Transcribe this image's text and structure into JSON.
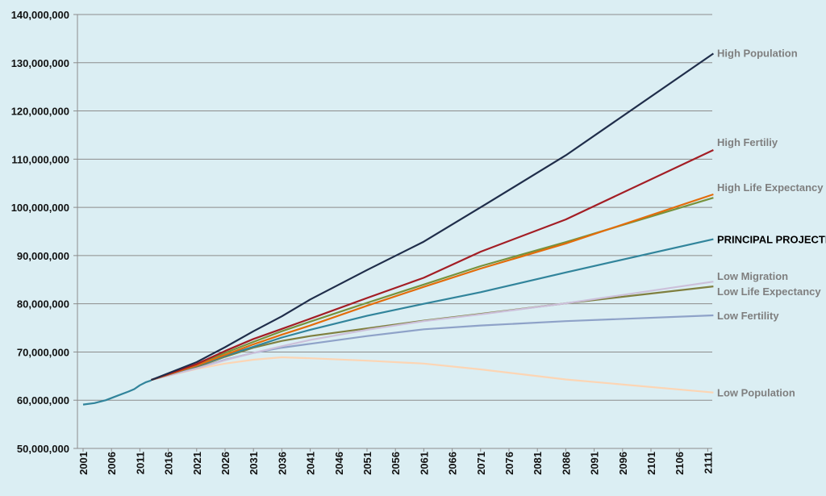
{
  "chart_data": {
    "type": "line",
    "title": "",
    "xlabel": "",
    "ylabel": "",
    "ylim": [
      50000000,
      140000000
    ],
    "xlim": [
      2001,
      2112
    ],
    "y_ticks": [
      50000000,
      60000000,
      70000000,
      80000000,
      90000000,
      100000000,
      110000000,
      120000000,
      130000000,
      140000000
    ],
    "y_tick_labels": [
      "50,000,000",
      "60,000,000",
      "70,000,000",
      "80,000,000",
      "90,000,000",
      "100,000,000",
      "110,000,000",
      "120,000,000",
      "130,000,000",
      "140,000,000"
    ],
    "x_tick_labels": [
      "2001",
      "2006",
      "2011",
      "2016",
      "2021",
      "2026",
      "2031",
      "2036",
      "2041",
      "2046",
      "2051",
      "2056",
      "2061",
      "2066",
      "2071",
      "2076",
      "2081",
      "2086",
      "2091",
      "2096",
      "2101",
      "2106",
      "2111"
    ],
    "grid": "horizontal",
    "legend": "labels at right end of each line",
    "historical": {
      "color": "#31849b",
      "points": [
        [
          2001,
          59100000
        ],
        [
          2003,
          59400000
        ],
        [
          2005,
          60000000
        ],
        [
          2007,
          60900000
        ],
        [
          2009,
          61800000
        ],
        [
          2010,
          62300000
        ],
        [
          2011,
          63100000
        ],
        [
          2012,
          63700000
        ],
        [
          2013,
          64100000
        ]
      ]
    },
    "series": [
      {
        "name": "High Population",
        "color": "#1f2d4a",
        "emph": false,
        "points": [
          [
            2013,
            64200000
          ],
          [
            2021,
            67900000
          ],
          [
            2026,
            71000000
          ],
          [
            2031,
            74300000
          ],
          [
            2036,
            77400000
          ],
          [
            2041,
            80900000
          ],
          [
            2051,
            87000000
          ],
          [
            2061,
            92900000
          ],
          [
            2071,
            100000000
          ],
          [
            2086,
            110800000
          ],
          [
            2112,
            131900000
          ]
        ]
      },
      {
        "name": "High Fertiliy",
        "color": "#a31d24",
        "emph": false,
        "points": [
          [
            2013,
            64200000
          ],
          [
            2021,
            67500000
          ],
          [
            2026,
            70200000
          ],
          [
            2031,
            72700000
          ],
          [
            2036,
            74800000
          ],
          [
            2041,
            76900000
          ],
          [
            2051,
            81200000
          ],
          [
            2061,
            85400000
          ],
          [
            2071,
            90800000
          ],
          [
            2086,
            97500000
          ],
          [
            2112,
            111900000
          ]
        ]
      },
      {
        "name": "High Life Expectancy",
        "color": "#e36c0a",
        "emph": false,
        "points": [
          [
            2013,
            64200000
          ],
          [
            2021,
            67200000
          ],
          [
            2026,
            69400000
          ],
          [
            2031,
            71600000
          ],
          [
            2036,
            73600000
          ],
          [
            2041,
            75500000
          ],
          [
            2051,
            79600000
          ],
          [
            2061,
            83500000
          ],
          [
            2071,
            87300000
          ],
          [
            2086,
            92500000
          ],
          [
            2112,
            102700000
          ]
        ]
      },
      {
        "name": "",
        "color": "#76923c",
        "emph": false,
        "points": [
          [
            2013,
            64200000
          ],
          [
            2021,
            67300000
          ],
          [
            2026,
            69800000
          ],
          [
            2031,
            72100000
          ],
          [
            2036,
            74300000
          ],
          [
            2041,
            76300000
          ],
          [
            2051,
            80200000
          ],
          [
            2061,
            84000000
          ],
          [
            2071,
            87800000
          ],
          [
            2086,
            92800000
          ],
          [
            2112,
            102000000
          ]
        ]
      },
      {
        "name": "PRINCIPAL PROJECTION",
        "color": "#31849b",
        "emph": true,
        "points": [
          [
            2013,
            64200000
          ],
          [
            2021,
            67100000
          ],
          [
            2026,
            69200000
          ],
          [
            2031,
            71100000
          ],
          [
            2036,
            73000000
          ],
          [
            2041,
            74600000
          ],
          [
            2051,
            77500000
          ],
          [
            2061,
            80000000
          ],
          [
            2071,
            82400000
          ],
          [
            2086,
            86500000
          ],
          [
            2112,
            93400000
          ]
        ]
      },
      {
        "name": "Low Migration",
        "color": "#ccc0da",
        "emph": false,
        "points": [
          [
            2013,
            64200000
          ],
          [
            2021,
            66600000
          ],
          [
            2026,
            68300000
          ],
          [
            2031,
            69800000
          ],
          [
            2036,
            71200000
          ],
          [
            2041,
            72500000
          ],
          [
            2051,
            74600000
          ],
          [
            2061,
            76400000
          ],
          [
            2071,
            77800000
          ],
          [
            2086,
            80100000
          ],
          [
            2112,
            84600000
          ]
        ]
      },
      {
        "name": "Low Life Expectancy",
        "color": "#7f7f3f",
        "emph": false,
        "points": [
          [
            2013,
            64200000
          ],
          [
            2021,
            66900000
          ],
          [
            2026,
            69000000
          ],
          [
            2031,
            70900000
          ],
          [
            2036,
            72300000
          ],
          [
            2041,
            73300000
          ],
          [
            2051,
            74900000
          ],
          [
            2061,
            76500000
          ],
          [
            2071,
            77900000
          ],
          [
            2086,
            80100000
          ],
          [
            2112,
            83600000
          ]
        ]
      },
      {
        "name": "Low Fertility",
        "color": "#8ea2c8",
        "emph": false,
        "points": [
          [
            2013,
            64200000
          ],
          [
            2021,
            66700000
          ],
          [
            2026,
            68400000
          ],
          [
            2031,
            69800000
          ],
          [
            2036,
            70900000
          ],
          [
            2041,
            71700000
          ],
          [
            2051,
            73300000
          ],
          [
            2061,
            74700000
          ],
          [
            2071,
            75500000
          ],
          [
            2086,
            76400000
          ],
          [
            2112,
            77600000
          ]
        ]
      },
      {
        "name": "Low Population",
        "color": "#fcd5b4",
        "emph": false,
        "points": [
          [
            2013,
            64200000
          ],
          [
            2021,
            66500000
          ],
          [
            2026,
            67600000
          ],
          [
            2031,
            68400000
          ],
          [
            2036,
            68900000
          ],
          [
            2041,
            68700000
          ],
          [
            2051,
            68200000
          ],
          [
            2061,
            67600000
          ],
          [
            2071,
            66400000
          ],
          [
            2086,
            64300000
          ],
          [
            2112,
            61600000
          ]
        ]
      }
    ]
  }
}
